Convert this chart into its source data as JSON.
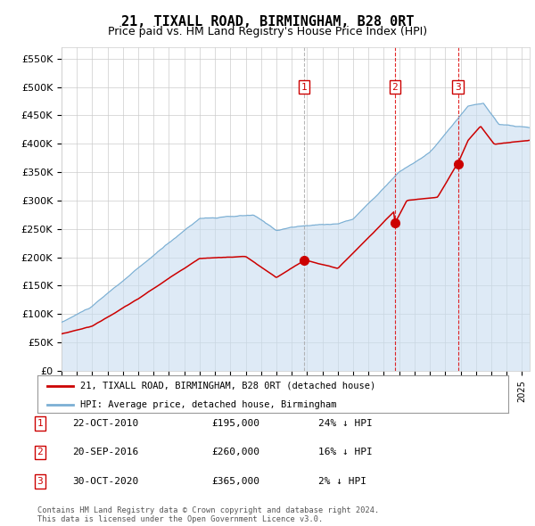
{
  "title": "21, TIXALL ROAD, BIRMINGHAM, B28 0RT",
  "subtitle": "Price paid vs. HM Land Registry's House Price Index (HPI)",
  "title_fontsize": 11,
  "subtitle_fontsize": 9,
  "ylabel_ticks": [
    "£0",
    "£50K",
    "£100K",
    "£150K",
    "£200K",
    "£250K",
    "£300K",
    "£350K",
    "£400K",
    "£450K",
    "£500K",
    "£550K"
  ],
  "ytick_values": [
    0,
    50000,
    100000,
    150000,
    200000,
    250000,
    300000,
    350000,
    400000,
    450000,
    500000,
    550000
  ],
  "ylim": [
    0,
    570000
  ],
  "xlim_start": 1995.0,
  "xlim_end": 2025.5,
  "sale_dates": [
    2010.81,
    2016.72,
    2020.83
  ],
  "sale_prices": [
    195000,
    260000,
    365000
  ],
  "sale_labels": [
    "1",
    "2",
    "3"
  ],
  "sale_date_strs": [
    "22-OCT-2010",
    "20-SEP-2016",
    "30-OCT-2020"
  ],
  "sale_price_strs": [
    "£195,000",
    "£260,000",
    "£365,000"
  ],
  "sale_hpi_strs": [
    "24% ↓ HPI",
    "16% ↓ HPI",
    "2% ↓ HPI"
  ],
  "line_red_color": "#cc0000",
  "line_blue_color": "#7bafd4",
  "fill_blue_color": "#c8ddf0",
  "grid_color": "#cccccc",
  "background_color": "#ffffff",
  "vline1_color": "#aaaaaa",
  "vline23_color": "#dd0000",
  "legend_label_red": "21, TIXALL ROAD, BIRMINGHAM, B28 0RT (detached house)",
  "legend_label_blue": "HPI: Average price, detached house, Birmingham",
  "footer_text": "Contains HM Land Registry data © Crown copyright and database right 2024.\nThis data is licensed under the Open Government Licence v3.0.",
  "marker_color": "#cc0000",
  "marker_size": 7
}
